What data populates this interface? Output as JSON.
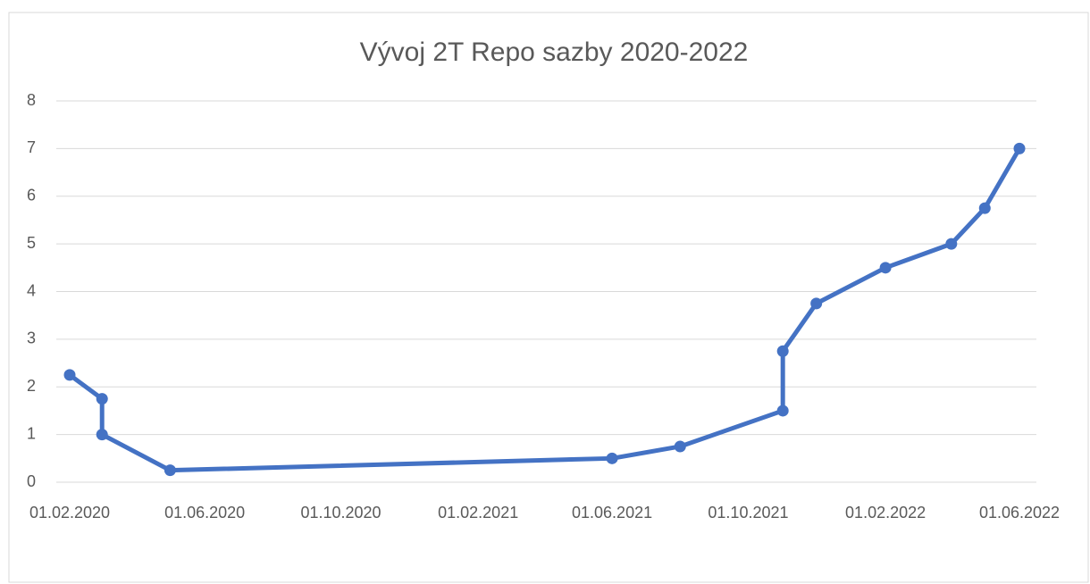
{
  "chart_data": {
    "type": "line",
    "title": "Vývoj 2T Repo sazby 2020-2022",
    "x": [
      "2020-02-01",
      "2020-03-01",
      "2020-03-01",
      "2020-05-01",
      "2021-06-01",
      "2021-08-01",
      "2021-11-01",
      "2021-11-01",
      "2021-12-01",
      "2022-02-01",
      "2022-04-01",
      "2022-05-01",
      "2022-06-01"
    ],
    "series": [
      {
        "name": "2T Repo",
        "color": "#4472c4",
        "values": [
          2.25,
          1.75,
          1,
          0.25,
          0.5,
          0.75,
          1.5,
          2.75,
          3.75,
          4.5,
          5,
          5.75,
          7
        ]
      }
    ],
    "xlim": [
      "2020-02-01",
      "2022-06-01"
    ],
    "xticks": [
      {
        "value": "2020-02-01",
        "label": "01.02.2020"
      },
      {
        "value": "2020-06-01",
        "label": "01.06.2020"
      },
      {
        "value": "2020-10-01",
        "label": "01.10.2020"
      },
      {
        "value": "2021-02-01",
        "label": "01.02.2021"
      },
      {
        "value": "2021-06-01",
        "label": "01.06.2021"
      },
      {
        "value": "2021-10-01",
        "label": "01.10.2021"
      },
      {
        "value": "2022-02-01",
        "label": "01.02.2022"
      },
      {
        "value": "2022-06-01",
        "label": "01.06.2022"
      }
    ],
    "ylim": [
      0,
      8
    ],
    "yticks": [
      0,
      1,
      2,
      3,
      4,
      5,
      6,
      7,
      8
    ],
    "grid": true
  }
}
